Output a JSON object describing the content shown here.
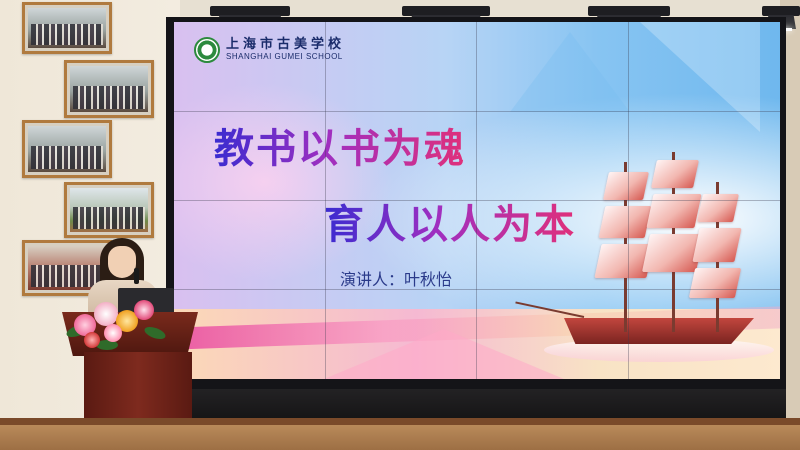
{
  "slide": {
    "school_name_cn": "上海市古美学校",
    "school_name_en": "SHANGHAI GUMEI SCHOOL",
    "title_line_1": "教书以书为魂",
    "title_line_2": "育人以人为本",
    "speaker_line": "演讲人：叶秋怡"
  },
  "icons": {
    "school_logo": "school-emblem-icon"
  },
  "colors": {
    "title_gradient_start": "#3a2bd0",
    "title_gradient_end": "#e0307a",
    "speaker_text": "#2a3a8a",
    "podium": "#6e2418"
  }
}
